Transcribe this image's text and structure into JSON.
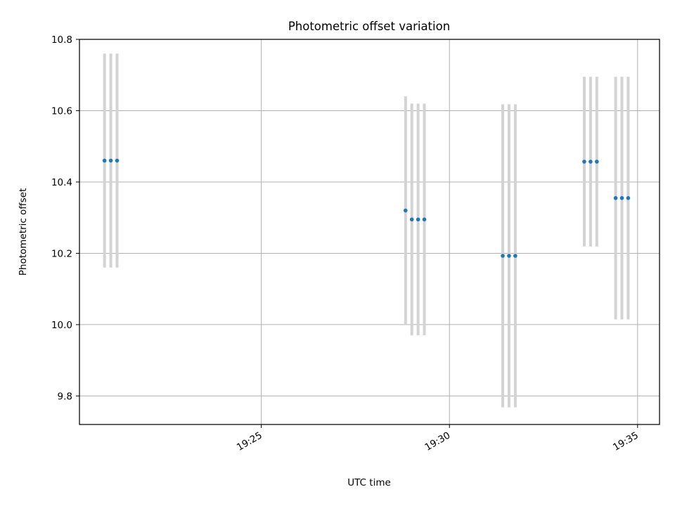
{
  "chart_data": {
    "type": "scatter",
    "title": "Photometric offset variation",
    "xlabel": "UTC time",
    "ylabel": "Photometric offset",
    "x_axis_kind": "time",
    "xlim": [
      "19:20:10",
      "19:35:35"
    ],
    "ylim": [
      9.72,
      10.8
    ],
    "x_ticks": [
      "19:25",
      "19:30",
      "19:35"
    ],
    "y_ticks": [
      9.8,
      10.0,
      10.2,
      10.4,
      10.6,
      10.8
    ],
    "y_tick_labels": [
      "9.8",
      "10.0",
      "10.2",
      "10.4",
      "10.6",
      "10.8"
    ],
    "grid": true,
    "colors": {
      "points": "#1f77b4",
      "error_bars": "#d3d3d3",
      "grid": "#b0b0b0",
      "axes": "#000000"
    },
    "series": [
      {
        "points": [
          {
            "x": "19:20:50",
            "y": 10.46,
            "yerr": 0.3
          },
          {
            "x": "19:21:00",
            "y": 10.46,
            "yerr": 0.3
          },
          {
            "x": "19:21:10",
            "y": 10.46,
            "yerr": 0.3
          },
          {
            "x": "19:28:50",
            "y": 10.32,
            "yerr": 0.32
          },
          {
            "x": "19:29:00",
            "y": 10.295,
            "yerr": 0.325
          },
          {
            "x": "19:29:10",
            "y": 10.295,
            "yerr": 0.325
          },
          {
            "x": "19:29:20",
            "y": 10.295,
            "yerr": 0.325
          },
          {
            "x": "19:31:25",
            "y": 10.193,
            "yerr": 0.425
          },
          {
            "x": "19:31:35",
            "y": 10.193,
            "yerr": 0.425
          },
          {
            "x": "19:31:45",
            "y": 10.193,
            "yerr": 0.425
          },
          {
            "x": "19:33:35",
            "y": 10.457,
            "yerr": 0.238
          },
          {
            "x": "19:33:45",
            "y": 10.457,
            "yerr": 0.238
          },
          {
            "x": "19:33:55",
            "y": 10.457,
            "yerr": 0.238
          },
          {
            "x": "19:34:25",
            "y": 10.355,
            "yerr": 0.34
          },
          {
            "x": "19:34:35",
            "y": 10.355,
            "yerr": 0.34
          },
          {
            "x": "19:34:45",
            "y": 10.355,
            "yerr": 0.34
          }
        ]
      }
    ]
  }
}
